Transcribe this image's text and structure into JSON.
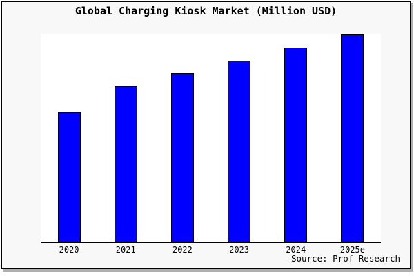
{
  "chart_data": {
    "type": "bar",
    "title": "Global Charging Kiosk Market (Million USD)",
    "categories": [
      "2020",
      "2021",
      "2022",
      "2023",
      "2024",
      "2025e"
    ],
    "values": [
      0.625,
      0.75,
      0.8125,
      0.875,
      0.9375,
      1.0
    ],
    "values_note": "No y-axis ticks, labels or gridlines are shown; values are bar heights relative to the tallest (2025e) bar. Relative proportions = 10:12:13:14:15:16.",
    "xlabel": "",
    "ylabel": "",
    "grid": false,
    "legend": false,
    "bar_color": "#0000fe",
    "bar_border_color": "#000000",
    "source_label": "Source: Prof Research"
  },
  "colors": {
    "canvas_background": "#f8f8f8",
    "plot_background": "#ffffff",
    "frame_border": "#000000",
    "frame_shadow": "#b0b0b0",
    "text": "#000000"
  }
}
